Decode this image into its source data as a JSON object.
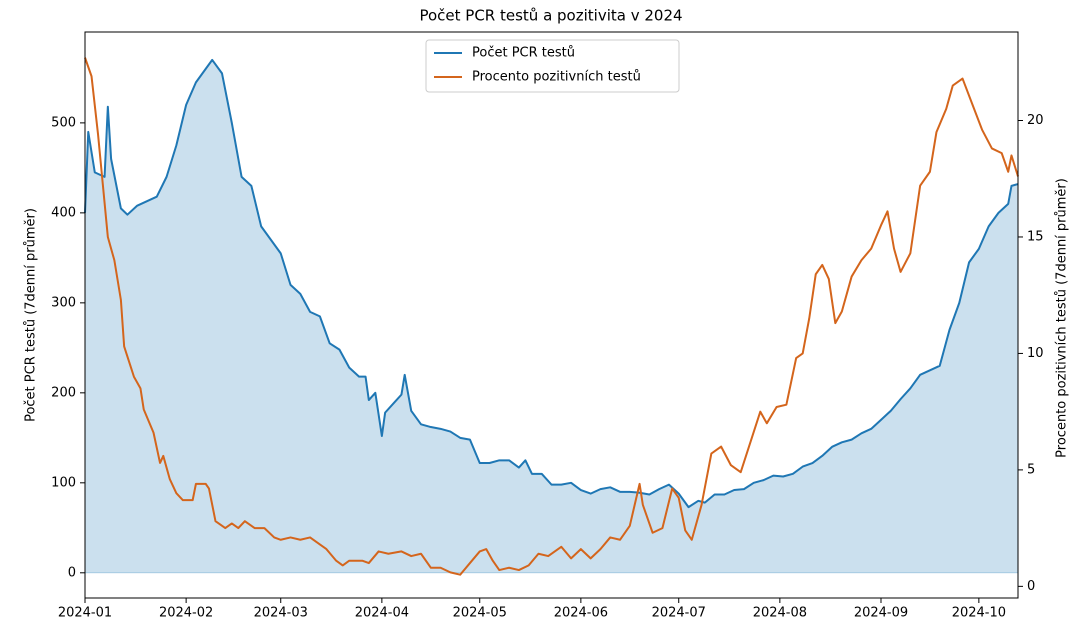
{
  "chart_data": {
    "type": "line",
    "title": "Počet PCR testů a pozitivita v 2024",
    "ylabel": "Počet PCR testů (7denní průměr)",
    "y2label": "Procento pozitivních testů (7denní průměr)",
    "xlim": [
      "2024-01-01",
      "2024-10-13"
    ],
    "xticks": [
      "2024-01",
      "2024-02",
      "2024-03",
      "2024-04",
      "2024-05",
      "2024-06",
      "2024-07",
      "2024-08",
      "2024-09",
      "2024-10"
    ],
    "ylim": [
      -28,
      601
    ],
    "yticks": [
      0,
      100,
      200,
      300,
      400,
      500
    ],
    "y2lim": [
      -0.5,
      23.8
    ],
    "y2ticks": [
      0,
      5,
      10,
      15,
      20
    ],
    "grid": false,
    "legend": "upper center",
    "series": [
      {
        "name": "Počet PCR testů",
        "color": "#1f77b4",
        "axis": "y",
        "fill": true,
        "x": [
          "2024-01-01",
          "2024-01-02",
          "2024-01-04",
          "2024-01-07",
          "2024-01-08",
          "2024-01-09",
          "2024-01-12",
          "2024-01-14",
          "2024-01-17",
          "2024-01-20",
          "2024-01-23",
          "2024-01-26",
          "2024-01-29",
          "2024-02-01",
          "2024-02-04",
          "2024-02-07",
          "2024-02-09",
          "2024-02-12",
          "2024-02-15",
          "2024-02-18",
          "2024-02-21",
          "2024-02-24",
          "2024-02-27",
          "2024-03-01",
          "2024-03-04",
          "2024-03-07",
          "2024-03-10",
          "2024-03-13",
          "2024-03-16",
          "2024-03-19",
          "2024-03-22",
          "2024-03-25",
          "2024-03-27",
          "2024-03-28",
          "2024-03-30",
          "2024-04-01",
          "2024-04-02",
          "2024-04-05",
          "2024-04-07",
          "2024-04-08",
          "2024-04-10",
          "2024-04-13",
          "2024-04-16",
          "2024-04-19",
          "2024-04-22",
          "2024-04-25",
          "2024-04-28",
          "2024-05-01",
          "2024-05-04",
          "2024-05-07",
          "2024-05-10",
          "2024-05-13",
          "2024-05-15",
          "2024-05-17",
          "2024-05-20",
          "2024-05-23",
          "2024-05-26",
          "2024-05-29",
          "2024-06-01",
          "2024-06-04",
          "2024-06-07",
          "2024-06-10",
          "2024-06-13",
          "2024-06-16",
          "2024-06-19",
          "2024-06-22",
          "2024-06-25",
          "2024-06-28",
          "2024-07-01",
          "2024-07-04",
          "2024-07-07",
          "2024-07-09",
          "2024-07-12",
          "2024-07-15",
          "2024-07-18",
          "2024-07-21",
          "2024-07-24",
          "2024-07-27",
          "2024-07-30",
          "2024-08-02",
          "2024-08-05",
          "2024-08-08",
          "2024-08-11",
          "2024-08-14",
          "2024-08-17",
          "2024-08-20",
          "2024-08-23",
          "2024-08-26",
          "2024-08-29",
          "2024-09-01",
          "2024-09-04",
          "2024-09-07",
          "2024-09-10",
          "2024-09-13",
          "2024-09-16",
          "2024-09-19",
          "2024-09-22",
          "2024-09-25",
          "2024-09-28",
          "2024-10-01",
          "2024-10-04",
          "2024-10-07",
          "2024-10-10",
          "2024-10-11",
          "2024-10-13"
        ],
        "values": [
          400,
          490,
          445,
          440,
          518,
          460,
          405,
          398,
          408,
          413,
          418,
          440,
          475,
          520,
          545,
          560,
          570,
          555,
          500,
          440,
          430,
          385,
          370,
          355,
          320,
          310,
          290,
          285,
          255,
          248,
          228,
          218,
          218,
          192,
          200,
          152,
          178,
          190,
          198,
          220,
          180,
          165,
          162,
          160,
          157,
          150,
          148,
          122,
          122,
          125,
          125,
          117,
          125,
          110,
          110,
          98,
          98,
          100,
          92,
          88,
          93,
          95,
          90,
          90,
          89,
          87,
          93,
          98,
          88,
          73,
          80,
          78,
          87,
          87,
          92,
          93,
          100,
          103,
          108,
          107,
          110,
          118,
          122,
          130,
          140,
          145,
          148,
          155,
          160,
          170,
          180,
          193,
          205,
          220,
          225,
          230,
          270,
          300,
          345,
          360,
          385,
          400,
          410,
          430,
          432
        ]
      },
      {
        "name": "Procento pozitivních testů",
        "color": "#d4651c",
        "axis": "y2",
        "x": [
          "2024-01-01",
          "2024-01-03",
          "2024-01-05",
          "2024-01-08",
          "2024-01-10",
          "2024-01-12",
          "2024-01-13",
          "2024-01-16",
          "2024-01-18",
          "2024-01-19",
          "2024-01-22",
          "2024-01-24",
          "2024-01-25",
          "2024-01-27",
          "2024-01-29",
          "2024-01-31",
          "2024-02-03",
          "2024-02-04",
          "2024-02-07",
          "2024-02-08",
          "2024-02-10",
          "2024-02-13",
          "2024-02-15",
          "2024-02-17",
          "2024-02-19",
          "2024-02-22",
          "2024-02-25",
          "2024-02-28",
          "2024-03-01",
          "2024-03-04",
          "2024-03-07",
          "2024-03-10",
          "2024-03-13",
          "2024-03-15",
          "2024-03-18",
          "2024-03-20",
          "2024-03-22",
          "2024-03-26",
          "2024-03-28",
          "2024-03-31",
          "2024-04-03",
          "2024-04-07",
          "2024-04-10",
          "2024-04-13",
          "2024-04-16",
          "2024-04-19",
          "2024-04-22",
          "2024-04-25",
          "2024-04-28",
          "2024-05-01",
          "2024-05-03",
          "2024-05-05",
          "2024-05-07",
          "2024-05-10",
          "2024-05-13",
          "2024-05-16",
          "2024-05-19",
          "2024-05-22",
          "2024-05-26",
          "2024-05-29",
          "2024-06-01",
          "2024-06-04",
          "2024-06-07",
          "2024-06-10",
          "2024-06-13",
          "2024-06-16",
          "2024-06-19",
          "2024-06-20",
          "2024-06-23",
          "2024-06-26",
          "2024-06-29",
          "2024-07-01",
          "2024-07-03",
          "2024-07-05",
          "2024-07-08",
          "2024-07-11",
          "2024-07-14",
          "2024-07-17",
          "2024-07-20",
          "2024-07-23",
          "2024-07-26",
          "2024-07-28",
          "2024-07-31",
          "2024-08-03",
          "2024-08-06",
          "2024-08-08",
          "2024-08-10",
          "2024-08-12",
          "2024-08-14",
          "2024-08-16",
          "2024-08-18",
          "2024-08-20",
          "2024-08-23",
          "2024-08-26",
          "2024-08-29",
          "2024-09-01",
          "2024-09-03",
          "2024-09-05",
          "2024-09-07",
          "2024-09-10",
          "2024-09-13",
          "2024-09-16",
          "2024-09-18",
          "2024-09-21",
          "2024-09-23",
          "2024-09-26",
          "2024-09-29",
          "2024-10-02",
          "2024-10-05",
          "2024-10-08",
          "2024-10-10",
          "2024-10-11",
          "2024-10-13"
        ],
        "values": [
          22.7,
          21.9,
          19.4,
          15,
          14,
          12.3,
          10.3,
          9,
          8.5,
          7.6,
          6.6,
          5.3,
          5.6,
          4.6,
          4.0,
          3.7,
          3.7,
          4.4,
          4.4,
          4.2,
          2.8,
          2.5,
          2.7,
          2.5,
          2.8,
          2.5,
          2.5,
          2.1,
          2.0,
          2.1,
          2.0,
          2.1,
          1.8,
          1.6,
          1.1,
          0.9,
          1.1,
          1.1,
          1.0,
          1.5,
          1.4,
          1.5,
          1.3,
          1.4,
          0.8,
          0.8,
          0.6,
          0.5,
          1.0,
          1.5,
          1.6,
          1.1,
          0.7,
          0.8,
          0.7,
          0.9,
          1.4,
          1.3,
          1.7,
          1.2,
          1.6,
          1.2,
          1.6,
          2.1,
          2.0,
          2.6,
          4.4,
          3.5,
          2.3,
          2.5,
          4.2,
          3.8,
          2.4,
          2.0,
          3.5,
          5.7,
          6.0,
          5.2,
          4.9,
          6.2,
          7.5,
          7.0,
          7.7,
          7.8,
          9.8,
          10.0,
          11.5,
          13.4,
          13.8,
          13.2,
          11.3,
          11.8,
          13.3,
          14.0,
          14.5,
          15.5,
          16.1,
          14.5,
          13.5,
          14.3,
          17.2,
          17.8,
          19.5,
          20.5,
          21.5,
          21.8,
          20.7,
          19.6,
          18.8,
          18.6,
          17.8,
          18.5,
          17.6
        ]
      }
    ]
  }
}
